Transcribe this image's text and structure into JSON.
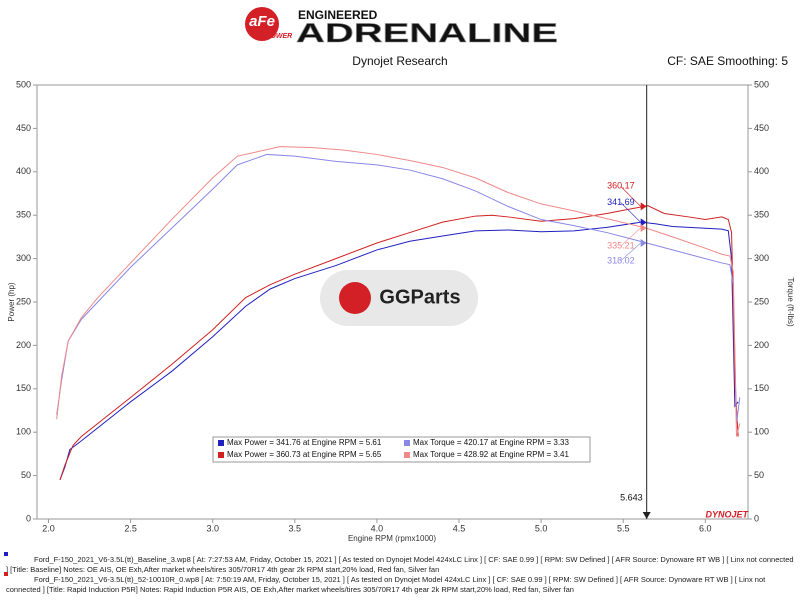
{
  "header": {
    "brand": "aFe",
    "brand_sub": "POWER",
    "tagline": "ENGINEERED",
    "title": "ADRENALINE"
  },
  "chart_data": {
    "type": "line",
    "subtitle": "Dynojet Research",
    "note": "CF: SAE Smoothing: 5",
    "xlabel": "Engine RPM (rpmx1000)",
    "ylabel": "Power (hp)",
    "y2label": "Torque (ft-lbs)",
    "xlim": [
      1.93,
      6.26
    ],
    "ylim": [
      0,
      500
    ],
    "y2lim": [
      0,
      500
    ],
    "xticks": [
      {
        "value": 2,
        "label": "2.0"
      },
      {
        "value": 2.5,
        "label": "2.5"
      },
      {
        "value": 3,
        "label": "3.0"
      },
      {
        "value": 3.5,
        "label": "3.5"
      },
      {
        "value": 4,
        "label": "4.0"
      },
      {
        "value": 4.5,
        "label": "4.5"
      },
      {
        "value": 5,
        "label": "5.0"
      },
      {
        "value": 5.5,
        "label": "5.5"
      },
      {
        "value": 6,
        "label": "6.0"
      }
    ],
    "yticks": [
      0,
      50,
      100,
      150,
      200,
      250,
      300,
      350,
      400,
      450,
      500
    ],
    "y2ticks": [
      0,
      50,
      100,
      150,
      200,
      250,
      300,
      350,
      400,
      450,
      500
    ],
    "grid": false,
    "series": [
      {
        "color": "#2020c0",
        "x": [
          2.07,
          2.1,
          2.13,
          2.2,
          2.3,
          2.5,
          2.75,
          3.0,
          3.2,
          3.35,
          3.5,
          3.75,
          4.0,
          4.2,
          4.4,
          4.6,
          4.8,
          5.0,
          5.2,
          5.4,
          5.61,
          5.7,
          5.8,
          5.9,
          6.0,
          6.1,
          6.14,
          6.16,
          6.18,
          6.2
        ],
        "values": [
          45,
          60,
          80,
          90,
          105,
          135,
          170,
          210,
          245,
          265,
          277,
          292,
          310,
          320,
          326,
          332,
          333,
          331,
          332,
          336,
          342,
          340,
          337,
          336,
          335,
          334,
          332,
          300,
          130,
          135
        ]
      },
      {
        "color": "#d02020",
        "x": [
          2.07,
          2.1,
          2.15,
          2.2,
          2.3,
          2.5,
          2.75,
          3.0,
          3.2,
          3.35,
          3.5,
          3.75,
          4.0,
          4.2,
          4.4,
          4.6,
          4.7,
          4.8,
          5.0,
          5.2,
          5.4,
          5.65,
          5.75,
          5.9,
          6.0,
          6.1,
          6.14,
          6.16,
          6.18,
          6.2
        ],
        "values": [
          45,
          62,
          85,
          95,
          110,
          140,
          178,
          218,
          255,
          270,
          282,
          300,
          318,
          330,
          342,
          349,
          350,
          348,
          343,
          346,
          352,
          361,
          352,
          348,
          345,
          348,
          345,
          330,
          160,
          95
        ]
      },
      {
        "color": "#8888e8",
        "axis": "y2",
        "x": [
          2.05,
          2.08,
          2.12,
          2.2,
          2.3,
          2.5,
          2.75,
          3.0,
          3.15,
          3.33,
          3.5,
          3.75,
          4.0,
          4.2,
          4.4,
          4.6,
          4.8,
          5.0,
          5.2,
          5.4,
          5.643,
          5.8,
          6.0,
          6.1,
          6.15,
          6.17,
          6.19,
          6.21
        ],
        "values": [
          120,
          160,
          205,
          230,
          250,
          290,
          335,
          380,
          408,
          420,
          418,
          412,
          408,
          402,
          392,
          378,
          360,
          345,
          338,
          330,
          318,
          310,
          300,
          295,
          293,
          270,
          110,
          140
        ]
      },
      {
        "color": "#f08888",
        "axis": "y2",
        "x": [
          2.05,
          2.08,
          2.12,
          2.2,
          2.3,
          2.5,
          2.75,
          3.0,
          3.15,
          3.41,
          3.6,
          3.8,
          4.0,
          4.2,
          4.4,
          4.6,
          4.8,
          5.0,
          5.2,
          5.4,
          5.643,
          5.8,
          6.0,
          6.1,
          6.15,
          6.17,
          6.19,
          6.21
        ],
        "values": [
          115,
          165,
          205,
          232,
          255,
          295,
          345,
          393,
          418,
          429,
          428,
          425,
          420,
          413,
          405,
          393,
          376,
          363,
          355,
          346,
          335,
          325,
          312,
          305,
          303,
          285,
          95,
          110
        ]
      }
    ],
    "legend": [
      {
        "label": "Max Power = 341.76 at Engine RPM = 5.61",
        "color": "#2020c0"
      },
      {
        "label": "Max Torque = 420.17 at Engine RPM = 3.33",
        "color": "#8888e8"
      },
      {
        "label": "Max Power = 360.73 at Engine RPM = 5.65",
        "color": "#d02020"
      },
      {
        "label": "Max Torque = 428.92 at Engine RPM = 3.41",
        "color": "#f08888"
      }
    ],
    "cursor": {
      "x": 5.643,
      "readings": [
        {
          "value": 360.17,
          "color": "#d02020"
        },
        {
          "value": 341.69,
          "color": "#2020c0"
        },
        {
          "value": 335.21,
          "color": "#f08888"
        },
        {
          "value": 318.02,
          "color": "#8888e8"
        }
      ]
    },
    "logo": "DYNOJET",
    "watermark": "GGParts"
  },
  "footer": [
    {
      "color": "#2020c0",
      "text": "Ford_F-150_2021_V6-3.5L(tt)_Baseline_3.wp8 [ At: 7:27:53 AM, Friday, October 15, 2021 ] [ As tested on Dynojet Model 424xLC Linx ] [ CF: SAE 0.99 ] [ RPM: SW Defined ] [ AFR Source: Dynoware RT WB ] [ Linx not connected ] [Title: Baseline]  Notes: OE AIS, OE Exh,After market wheels/tires 305/70R17 4th gear 2k RPM start,20% load, Red fan, Silver fan"
    },
    {
      "color": "#d02020",
      "text": "Ford_F-150_2021_V6-3.5L(tt)_52-10010R_0.wp8 [ At: 7:50:19 AM, Friday, October 15, 2021 ] [ As tested on Dynojet Model 424xLC Linx ] [ CF: SAE 0.99 ] [ RPM: SW Defined ] [ AFR Source: Dynoware RT WB ] [ Linx not connected ] [Title: Rapid Induction P5R]  Notes: Rapid Induction P5R AIS, OE Exh,After market wheels/tires 305/70R17 4th gear 2k RPM start,20% load, Red fan, Silver fan"
    }
  ]
}
